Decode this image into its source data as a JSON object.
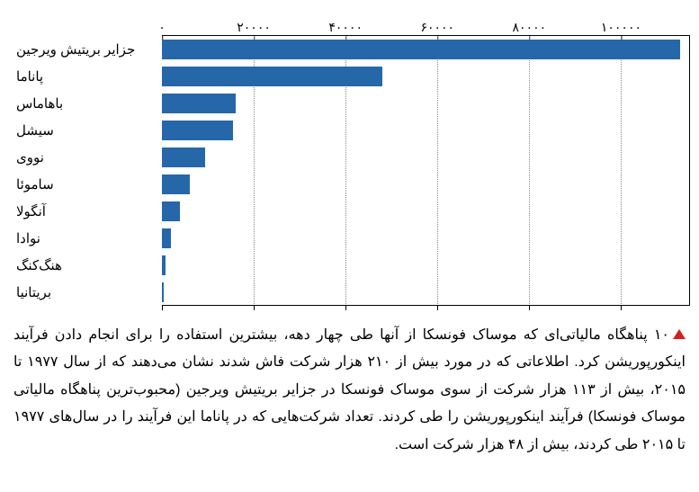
{
  "chart": {
    "type": "bar-horizontal",
    "bar_color": "#2567a9",
    "grid_color": "#888888",
    "axis_color": "#000000",
    "background_color": "#ffffff",
    "label_fontsize": 15,
    "tick_fontsize": 14,
    "xmax": 115000,
    "xtick_step": 20000,
    "xticks": [
      {
        "value": 0,
        "label": "۰"
      },
      {
        "value": 20000,
        "label": "۲۰۰۰۰"
      },
      {
        "value": 40000,
        "label": "۴۰۰۰۰"
      },
      {
        "value": 60000,
        "label": "۶۰۰۰۰"
      },
      {
        "value": 80000,
        "label": "۸۰۰۰۰"
      },
      {
        "value": 100000,
        "label": "۱۰۰۰۰۰"
      }
    ],
    "categories": [
      {
        "label": "جزایر بریتیش ویرجین",
        "value": 113000
      },
      {
        "label": "پاناما",
        "value": 48000
      },
      {
        "label": "باهاماس",
        "value": 16000
      },
      {
        "label": "سیشل",
        "value": 15500
      },
      {
        "label": "نووی",
        "value": 9500
      },
      {
        "label": "ساموئا",
        "value": 6000
      },
      {
        "label": "آنگولا",
        "value": 4000
      },
      {
        "label": "نوادا",
        "value": 2000
      },
      {
        "label": "هنگ‌کنگ",
        "value": 800
      },
      {
        "label": "بریتانیا",
        "value": 400
      }
    ]
  },
  "description": {
    "triangle_color": "#d32020",
    "text": "۱۰ پناهگاه مالیاتی‌ای که موساک فونسکا از آنها طی چهار دهه، بیشترین استفاده را برای انجام دادن فرآیند اینکورپوریشن کرد. اطلاعاتی که در مورد بیش از ۲۱۰ هزار شرکت فاش شدند نشان می‌دهند که از سال ۱۹۷۷ تا ۲۰۱۵، بیش از ۱۱۳ هزار شرکت از سوی موساک فونسکا در جزایر بریتیش ویرجین (محبوب‌ترین پناهگاه مالیاتی موساک فونسکا) فرآیند اینکورپوریشن را طی کردند. تعداد شرکت‌هایی که در پاناما این فرآیند را در سال‌های ۱۹۷۷ تا ۲۰۱۵ طی کردند، بیش از ۴۸ هزار شرکت است."
  }
}
